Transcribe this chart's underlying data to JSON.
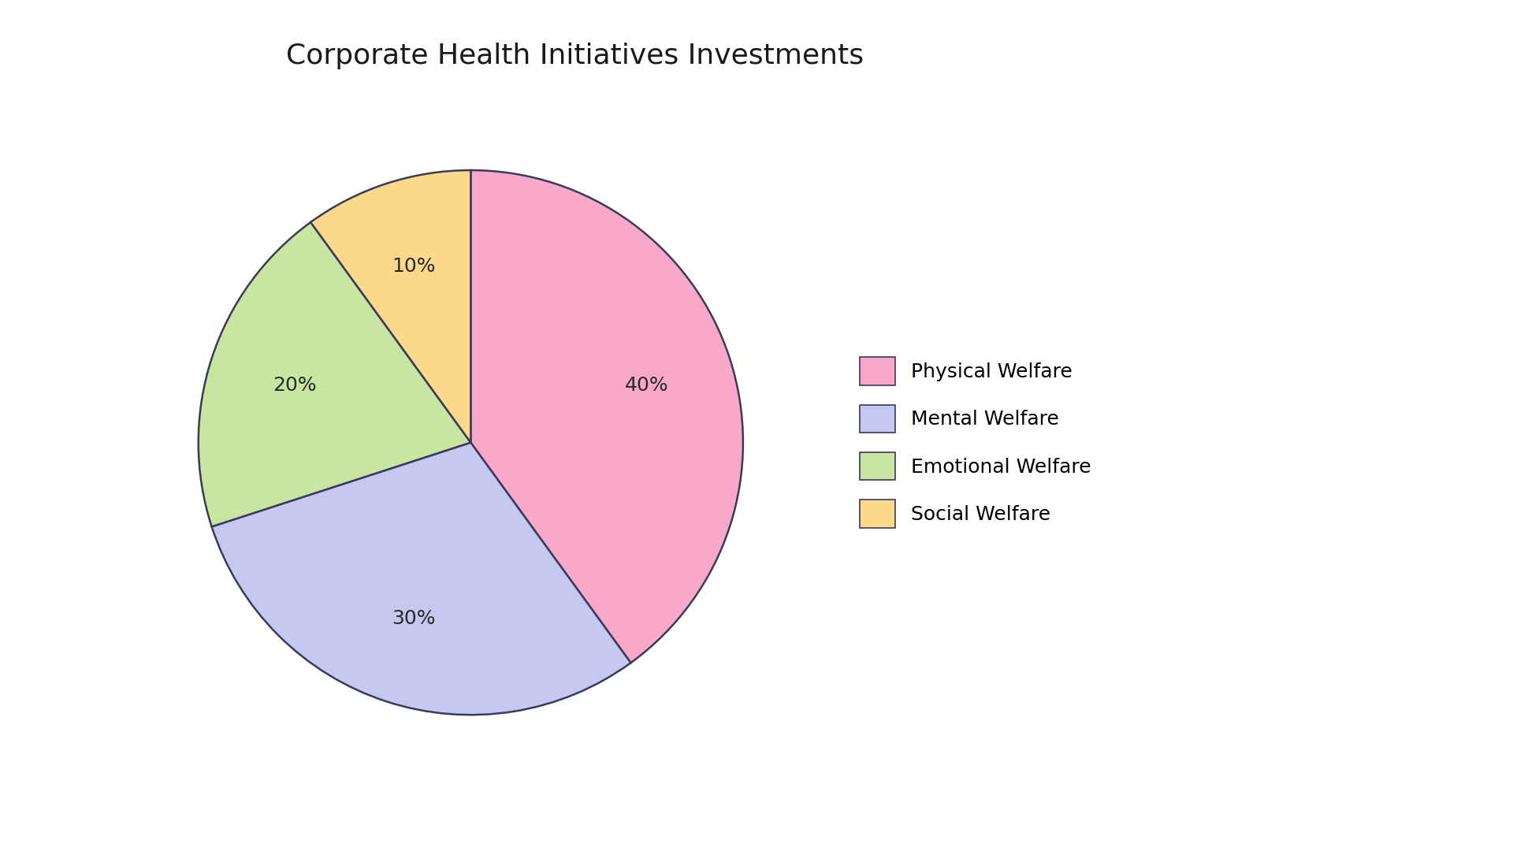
{
  "title": "Corporate Health Initiatives Investments",
  "labels": [
    "Physical Welfare",
    "Mental Welfare",
    "Emotional Welfare",
    "Social Welfare"
  ],
  "values": [
    40,
    30,
    20,
    10
  ],
  "colors": [
    "#F9A8C9",
    "#C5C8F0",
    "#C8E6A0",
    "#FAD98A"
  ],
  "edge_color": "#3a3a5c",
  "background_color": "#ffffff",
  "title_fontsize": 26,
  "pct_fontsize": 18,
  "legend_fontsize": 18,
  "startangle": 90,
  "pctdistance": 0.68
}
